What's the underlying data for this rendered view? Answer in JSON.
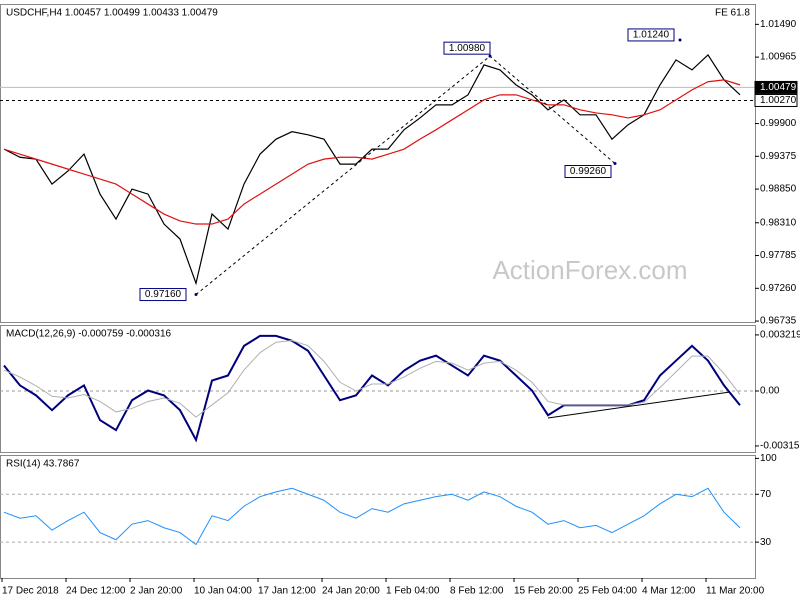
{
  "chart_data": [
    {
      "type": "line",
      "title": "USDCHF,H4  1.00457 1.00499 1.00433 1.00479",
      "subtitle": "FE 61.8",
      "watermark": "ActionForex.com",
      "ylim": [
        0.9672,
        1.018
      ],
      "yticks": [
        0.96735,
        {
          "value": 0.9726,
          "label": "0.97260"
        },
        0.97785,
        {
          "value": 0.9831,
          "label": "0.98310"
        },
        {
          "value": 0.9885,
          "label": "0.98850"
        },
        0.99375,
        {
          "value": 0.999,
          "label": "0.99900"
        },
        1.00965,
        {
          "value": 1.0149,
          "label": "1.01490"
        }
      ],
      "series": [
        {
          "color": "#000000",
          "values": [
            0.9949,
            0.9936,
            0.9933,
            0.9893,
            0.9914,
            0.9941,
            0.9877,
            0.9837,
            0.9885,
            0.9877,
            0.9829,
            0.9805,
            0.9734,
            0.9845,
            0.9821,
            0.9893,
            0.9941,
            0.9965,
            0.9977,
            0.9972,
            0.9965,
            0.9925,
            0.9925,
            0.9949,
            0.9949,
            0.998,
            0.9999,
            1.002,
            1.002,
            1.0036,
            1.0084,
            1.0076,
            1.0052,
            1.0036,
            1.0012,
            1.0028,
            1.0004,
            1.0004,
            0.9965,
            0.9988,
            1.0004,
            1.0052,
            1.0092,
            1.0076,
            1.01,
            1.006,
            1.0036
          ]
        },
        {
          "color": "#e01010",
          "values": [
            0.9949,
            0.9941,
            0.9933,
            0.9925,
            0.9917,
            0.9909,
            0.9901,
            0.9893,
            0.9877,
            0.9861,
            0.9845,
            0.9834,
            0.9829,
            0.9829,
            0.9837,
            0.9861,
            0.9877,
            0.9893,
            0.9909,
            0.9925,
            0.9933,
            0.9936,
            0.9936,
            0.9933,
            0.9941,
            0.9949,
            0.9965,
            0.998,
            0.9996,
            1.0012,
            1.0028,
            1.0036,
            1.0036,
            1.0028,
            1.002,
            1.002,
            1.0012,
            1.0007,
            1.0004,
            0.9999,
            1.0004,
            1.0012,
            1.0028,
            1.0044,
            1.0057,
            1.006,
            1.0052
          ]
        }
      ],
      "annotations": [
        {
          "value": 0.9716,
          "label": "0.97160"
        },
        {
          "value": 1.0098,
          "label": "1.00980"
        },
        {
          "value": 0.9926,
          "label": "0.99260"
        },
        {
          "value": 1.0124,
          "label": "1.01240"
        }
      ],
      "price_lines": [
        {
          "value": 1.00479,
          "label": "1.00479",
          "style": "solid"
        },
        {
          "value": 1.0027,
          "label": "1.00270",
          "style": "dashed"
        }
      ]
    },
    {
      "type": "line",
      "title": "MACD(12,26,9) -0.000759 -0.000316",
      "ylim": [
        -0.0035,
        0.00373
      ],
      "yticks": [
        0.003219,
        {
          "value": 0,
          "label": "0.00"
        },
        -0.003153
      ],
      "zero_line": true,
      "series": [
        {
          "color": "#00007f",
          "width": 2,
          "values": [
            0.00146,
            0.00032,
            -0.00025,
            -0.0011,
            -0.00025,
            0.00032,
            -0.00167,
            -0.00224,
            -0.00053,
            3e-05,
            -0.00025,
            -0.0011,
            -0.00281,
            0.0006,
            0.00089,
            0.00259,
            0.00316,
            0.00316,
            0.00288,
            0.00231,
            0.00089,
            -0.00053,
            -0.00025,
            0.00089,
            0.00032,
            0.00117,
            0.00174,
            0.00203,
            0.00146,
            0.00089,
            0.00203,
            0.00174,
            0.00089,
            3e-05,
            -0.00139,
            -0.00082,
            -0.00082,
            -0.00082,
            -0.00082,
            -0.00082,
            -0.00053,
            0.00089,
            0.00174,
            0.00259,
            0.00174,
            0.00032,
            -0.00082
          ]
        },
        {
          "color": "#b0b0b0",
          "width": 1,
          "values": [
            0.0012,
            0.0008,
            0.0003,
            -0.0003,
            -0.0004,
            -0.0002,
            -0.0006,
            -0.0012,
            -0.001,
            -0.0006,
            -0.0004,
            -0.0007,
            -0.0015,
            -0.0008,
            -0.0001,
            0.0012,
            0.0022,
            0.0028,
            0.0029,
            0.0026,
            0.0017,
            0.0005,
            0,
            0.0004,
            0.0004,
            0.0008,
            0.0013,
            0.0017,
            0.0016,
            0.0012,
            0.0016,
            0.0017,
            0.0012,
            0.0005,
            -0.0006,
            -0.0008,
            -0.0008,
            -0.0008,
            -0.0008,
            -0.0008,
            -0.00065,
            0.0002,
            0.0011,
            0.002,
            0.002,
            0.001,
            -0.0002
          ]
        }
      ]
    },
    {
      "type": "line",
      "title": "RSI(14) 43.7867",
      "ylim": [
        0,
        102
      ],
      "yticks": [
        30,
        70,
        100
      ],
      "levels": [
        30,
        70
      ],
      "series": [
        {
          "color": "#1e90ff",
          "width": 1,
          "values": [
            55,
            50,
            52,
            40,
            48,
            55,
            38,
            32,
            45,
            48,
            42,
            38,
            28,
            52,
            48,
            60,
            68,
            72,
            75,
            70,
            65,
            55,
            50,
            58,
            55,
            62,
            65,
            68,
            70,
            65,
            72,
            68,
            60,
            55,
            45,
            48,
            42,
            44,
            38,
            45,
            52,
            62,
            70,
            68,
            75,
            55,
            42
          ]
        }
      ],
      "x_labels": [
        "17 Dec 2018",
        "24 Dec 12:00",
        "2 Jan 20:00",
        "10 Jan 04:00",
        "17 Jan 12:00",
        "24 Jan 20:00",
        "1 Feb 04:00",
        "8 Feb 12:00",
        "15 Feb 20:00",
        "25 Feb 04:00",
        "4 Mar 12:00",
        "11 Mar 20:00"
      ]
    }
  ]
}
